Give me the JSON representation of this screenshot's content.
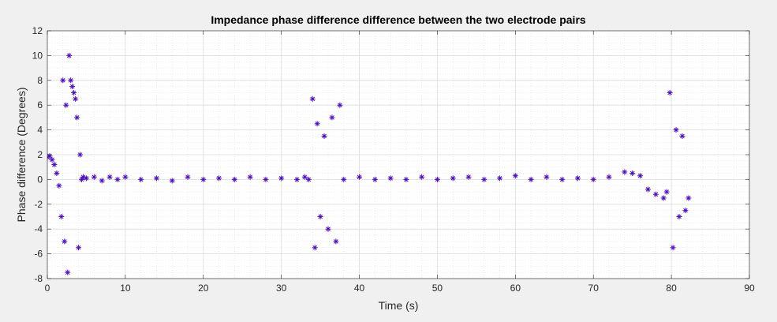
{
  "chart_data": {
    "type": "scatter",
    "title": "Impedance phase difference difference between the two electrode pairs",
    "xlabel": "Time (s)",
    "ylabel": "Phase difference (Degrees)",
    "xlim": [
      0,
      90
    ],
    "ylim": [
      -8,
      12
    ],
    "xticks": [
      0,
      10,
      20,
      30,
      40,
      50,
      60,
      70,
      80,
      90
    ],
    "yticks": [
      -8,
      -6,
      -4,
      -2,
      0,
      2,
      4,
      6,
      8,
      10,
      12
    ],
    "grid": true,
    "minor_grid": true,
    "marker": "asterisk",
    "series_color": "#4b0fc6",
    "series": [
      {
        "x": [
          0.0,
          0.3,
          0.6,
          0.9,
          1.2,
          1.5,
          1.8,
          2.0,
          2.2,
          2.4,
          2.6,
          2.8,
          3.0,
          3.2,
          3.4,
          3.6,
          3.8,
          4.0,
          4.2,
          4.4,
          4.6,
          5.0,
          6.0,
          7.0,
          8.0,
          9.0,
          10.0,
          12.0,
          14.0,
          16.0,
          18.0,
          20.0,
          22.0,
          24.0,
          26.0,
          28.0,
          30.0,
          32.0,
          33.0,
          33.5,
          34.0,
          34.3,
          34.6,
          35.0,
          35.5,
          36.0,
          36.5,
          37.0,
          37.5,
          38.0,
          40.0,
          42.0,
          44.0,
          46.0,
          48.0,
          50.0,
          52.0,
          54.0,
          56.0,
          58.0,
          60.0,
          62.0,
          64.0,
          66.0,
          68.0,
          70.0,
          72.0,
          74.0,
          75.0,
          76.0,
          77.0,
          78.0,
          79.0,
          79.4,
          79.8,
          80.2,
          80.6,
          81.0,
          81.4,
          81.8,
          82.2
        ],
        "y": [
          1.8,
          1.9,
          1.6,
          1.2,
          0.5,
          -0.5,
          -3.0,
          8.0,
          -5.0,
          6.0,
          -7.5,
          10.0,
          8.0,
          7.5,
          7.0,
          6.5,
          5.0,
          -5.5,
          2.0,
          0.0,
          0.2,
          0.1,
          0.2,
          -0.1,
          0.2,
          0.0,
          0.2,
          0.0,
          0.1,
          -0.1,
          0.2,
          0.0,
          0.1,
          0.0,
          0.2,
          0.0,
          0.1,
          0.0,
          0.2,
          0.0,
          6.5,
          -5.5,
          4.5,
          -3.0,
          3.5,
          -4.0,
          5.0,
          -5.0,
          6.0,
          0.0,
          0.2,
          0.0,
          0.1,
          0.0,
          0.2,
          0.0,
          0.1,
          0.2,
          0.0,
          0.1,
          0.3,
          0.0,
          0.2,
          0.0,
          0.1,
          0.0,
          0.2,
          0.6,
          0.5,
          0.3,
          -0.8,
          -1.2,
          -1.5,
          -1.0,
          7.0,
          -5.5,
          4.0,
          -3.0,
          3.5,
          -2.5,
          -1.5
        ]
      }
    ]
  }
}
